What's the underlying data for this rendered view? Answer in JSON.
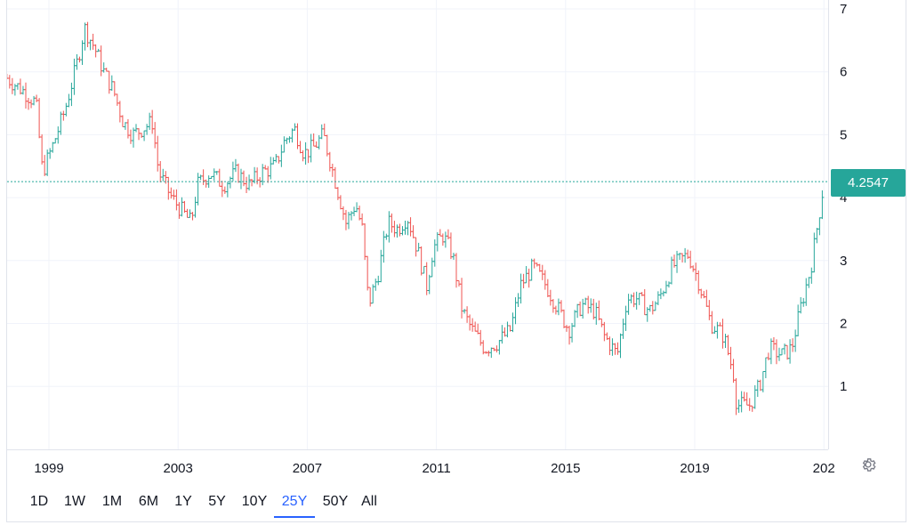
{
  "price_badge": "4.2547",
  "range_buttons": [
    "1D",
    "1W",
    "1M",
    "6M",
    "1Y",
    "5Y",
    "10Y",
    "25Y",
    "50Y",
    "All"
  ],
  "active_range": "25Y",
  "settings_icon": "gear-icon",
  "colors": {
    "up": "#26a69a",
    "down": "#ef5350",
    "accent": "#2962ff",
    "grid": "#f0f3fa"
  },
  "chart_data": {
    "type": "candlestick",
    "y_ticks": [
      "7",
      "6",
      "5",
      "4",
      "3",
      "2",
      "1"
    ],
    "x_ticks": [
      "1999",
      "2003",
      "2007",
      "2011",
      "2015",
      "2019",
      "202"
    ],
    "ylim": [
      0,
      7
    ],
    "xlim": [
      1997.7,
      2023.5
    ],
    "last_price": 4.2547,
    "grid": true,
    "anchors": [
      [
        1997.7,
        5.9
      ],
      [
        1998.2,
        5.7
      ],
      [
        1998.6,
        5.5
      ],
      [
        1998.8,
        4.4
      ],
      [
        1999.1,
        4.8
      ],
      [
        1999.5,
        5.4
      ],
      [
        1999.9,
        6.2
      ],
      [
        2000.1,
        6.7
      ],
      [
        2000.4,
        6.4
      ],
      [
        2000.7,
        6.0
      ],
      [
        2001.0,
        5.7
      ],
      [
        2001.3,
        5.2
      ],
      [
        2001.6,
        5.0
      ],
      [
        2001.9,
        5.1
      ],
      [
        2002.2,
        5.2
      ],
      [
        2002.4,
        4.4
      ],
      [
        2002.8,
        4.0
      ],
      [
        2003.1,
        3.8
      ],
      [
        2003.4,
        3.6
      ],
      [
        2003.6,
        4.2
      ],
      [
        2004.0,
        4.4
      ],
      [
        2004.4,
        4.2
      ],
      [
        2004.8,
        4.4
      ],
      [
        2005.2,
        4.2
      ],
      [
        2005.6,
        4.4
      ],
      [
        2006.0,
        4.5
      ],
      [
        2006.3,
        4.9
      ],
      [
        2006.6,
        5.1
      ],
      [
        2006.9,
        4.7
      ],
      [
        2007.2,
        4.8
      ],
      [
        2007.5,
        5.0
      ],
      [
        2007.9,
        4.2
      ],
      [
        2008.2,
        3.6
      ],
      [
        2008.5,
        3.9
      ],
      [
        2008.7,
        3.5
      ],
      [
        2008.9,
        2.3
      ],
      [
        2009.2,
        2.8
      ],
      [
        2009.5,
        3.6
      ],
      [
        2009.8,
        3.5
      ],
      [
        2010.1,
        3.7
      ],
      [
        2010.4,
        3.2
      ],
      [
        2010.7,
        2.6
      ],
      [
        2010.9,
        3.2
      ],
      [
        2011.2,
        3.4
      ],
      [
        2011.5,
        3.1
      ],
      [
        2011.8,
        2.2
      ],
      [
        2012.1,
        1.9
      ],
      [
        2012.5,
        1.6
      ],
      [
        2012.9,
        1.7
      ],
      [
        2013.3,
        1.9
      ],
      [
        2013.6,
        2.6
      ],
      [
        2014.0,
        2.9
      ],
      [
        2014.4,
        2.6
      ],
      [
        2014.8,
        2.2
      ],
      [
        2015.1,
        1.9
      ],
      [
        2015.5,
        2.3
      ],
      [
        2015.9,
        2.2
      ],
      [
        2016.2,
        1.8
      ],
      [
        2016.6,
        1.5
      ],
      [
        2016.9,
        2.4
      ],
      [
        2017.2,
        2.4
      ],
      [
        2017.6,
        2.2
      ],
      [
        2017.9,
        2.4
      ],
      [
        2018.3,
        2.9
      ],
      [
        2018.8,
        3.1
      ],
      [
        2019.1,
        2.7
      ],
      [
        2019.5,
        2.0
      ],
      [
        2019.9,
        1.8
      ],
      [
        2020.2,
        1.2
      ],
      [
        2020.3,
        0.7
      ],
      [
        2020.7,
        0.7
      ],
      [
        2021.0,
        1.0
      ],
      [
        2021.3,
        1.6
      ],
      [
        2021.7,
        1.5
      ],
      [
        2022.0,
        1.6
      ],
      [
        2022.3,
        2.3
      ],
      [
        2022.6,
        2.9
      ],
      [
        2022.9,
        3.9
      ],
      [
        2023.0,
        4.25
      ]
    ]
  }
}
